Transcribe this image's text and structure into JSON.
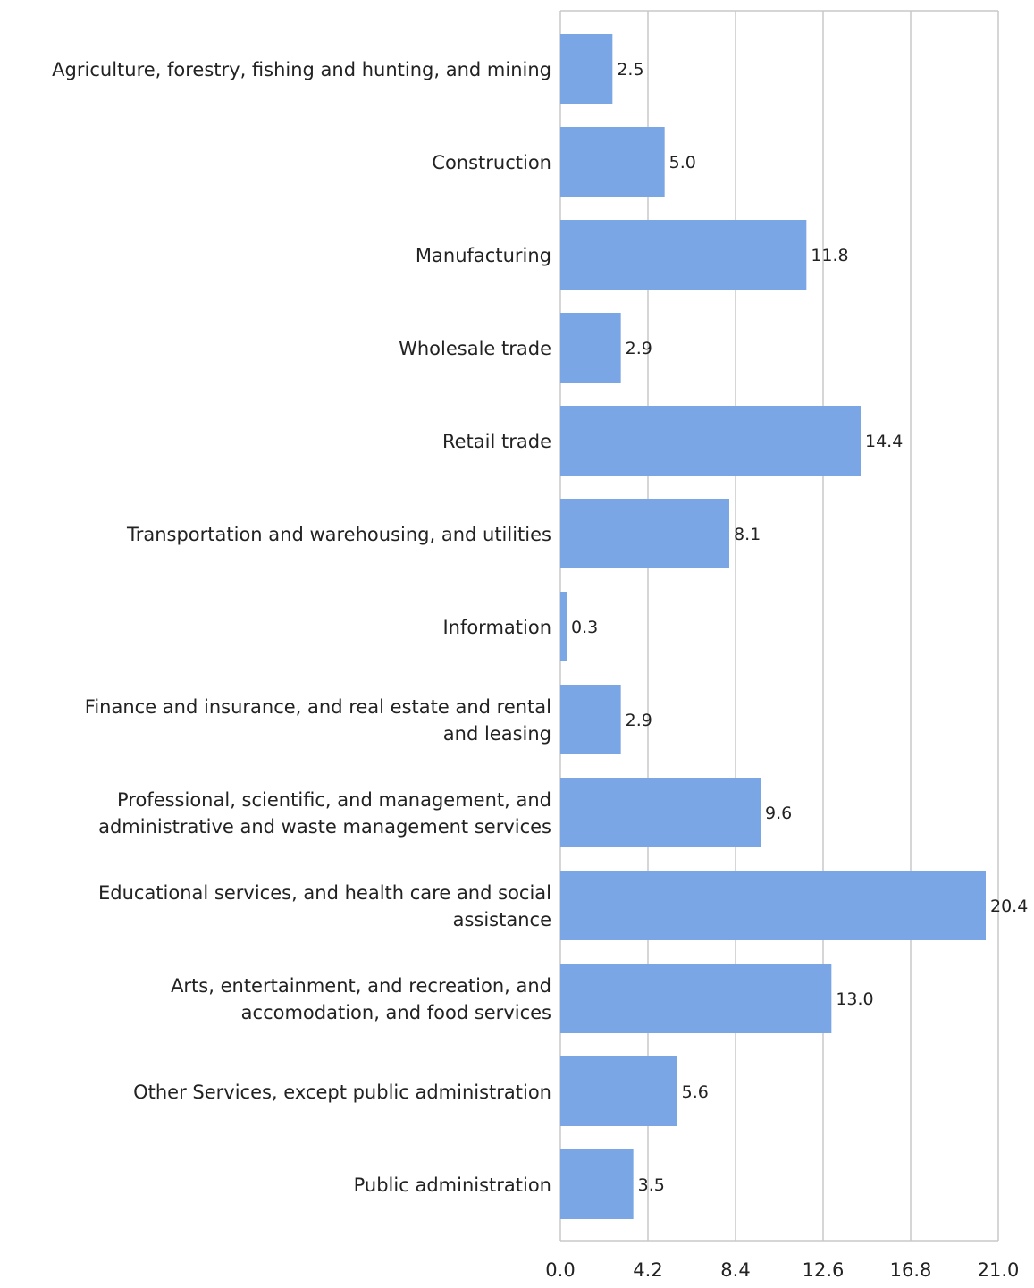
{
  "chart_data": {
    "type": "bar",
    "orientation": "horizontal",
    "categories": [
      [
        "Agriculture, forestry, fishing and hunting, and mining"
      ],
      [
        "Construction"
      ],
      [
        "Manufacturing"
      ],
      [
        "Wholesale trade"
      ],
      [
        "Retail trade"
      ],
      [
        "Transportation and warehousing, and utilities"
      ],
      [
        "Information"
      ],
      [
        "Finance and insurance, and real estate and rental",
        "and leasing"
      ],
      [
        "Professional, scientific, and management, and",
        "administrative and waste management services"
      ],
      [
        "Educational services, and health care and social",
        "assistance"
      ],
      [
        "Arts, entertainment, and recreation, and",
        "accomodation, and food services"
      ],
      [
        "Other Services, except public administration"
      ],
      [
        "Public administration"
      ]
    ],
    "values": [
      2.5,
      5.0,
      11.8,
      2.9,
      14.4,
      8.1,
      0.3,
      2.9,
      9.6,
      20.4,
      13.0,
      5.6,
      3.5
    ],
    "value_labels": [
      "2.5",
      "5.0",
      "11.8",
      "2.9",
      "14.4",
      "8.1",
      "0.3",
      "2.9",
      "9.6",
      "20.4",
      "13.0",
      "5.6",
      "3.5"
    ],
    "xticks": [
      "0.0",
      "4.2",
      "8.4",
      "12.6",
      "16.8",
      "21.0"
    ],
    "xlim": [
      0,
      21.0
    ],
    "title": "",
    "xlabel": "",
    "ylabel": "",
    "grid": true,
    "legend": "none",
    "bar_color": "#7aa6e6",
    "grid_color": "#c8c8c8"
  }
}
